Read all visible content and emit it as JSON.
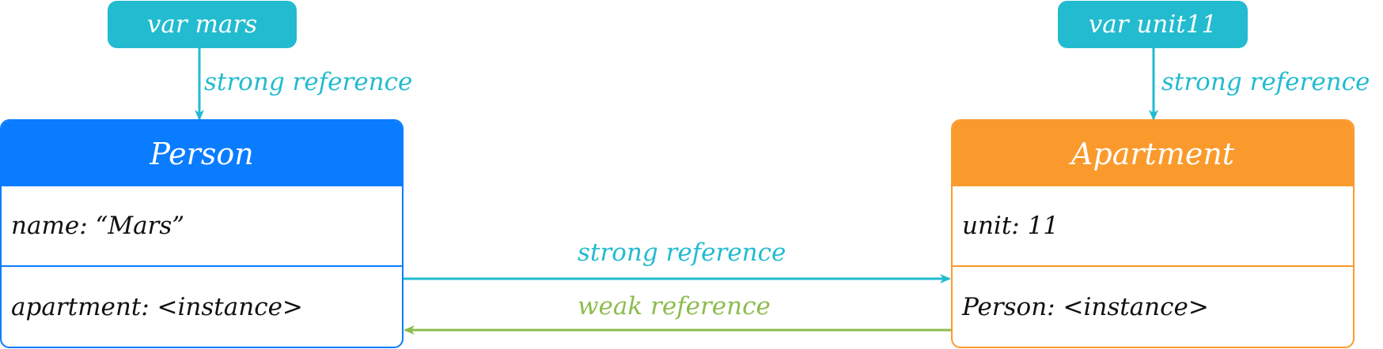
{
  "variables": {
    "mars": {
      "label": "var mars"
    },
    "unit11": {
      "label": "var unit11"
    }
  },
  "references": {
    "mars_to_person": "strong reference",
    "unit11_to_apartment": "strong reference",
    "person_to_apartment": "strong reference",
    "apartment_to_person": "weak reference"
  },
  "classes": {
    "person": {
      "title": "Person",
      "fields": [
        "name: “Mars”",
        "apartment: <instance>"
      ]
    },
    "apartment": {
      "title": "Apartment",
      "fields": [
        "unit: 11",
        "Person: <instance>"
      ]
    }
  },
  "colors": {
    "variable": "#22bbd0",
    "person": "#0a7cff",
    "apartment": "#fb9a2c",
    "strong": "#22bbd0",
    "weak": "#8dbc4e"
  }
}
